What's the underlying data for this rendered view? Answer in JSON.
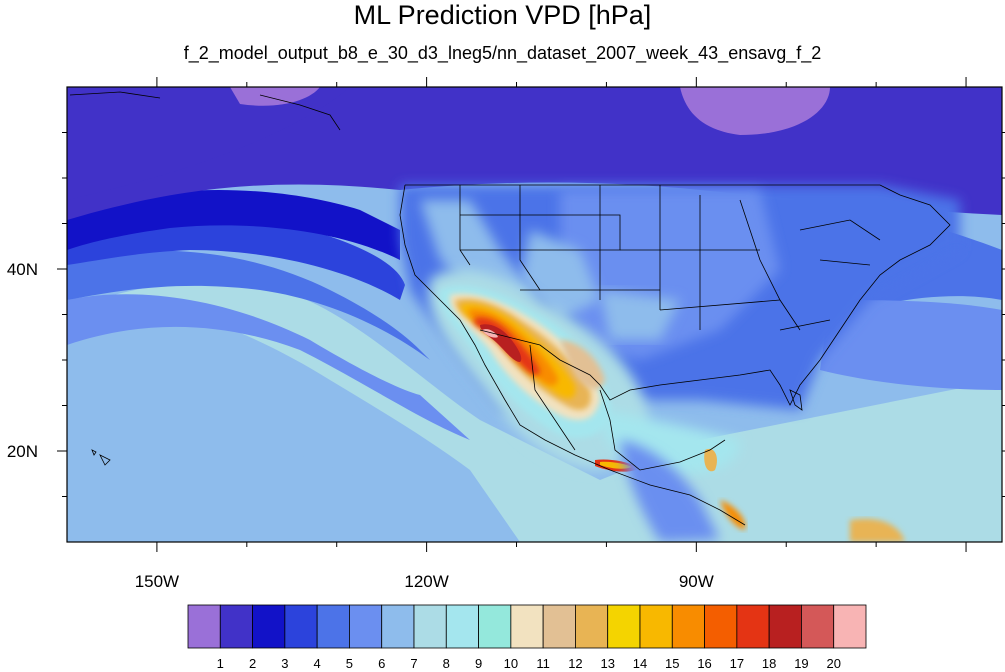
{
  "title": "ML Prediction VPD [hPa]",
  "subtitle": "f_2_model_output_b8_e_30_d3_lneg5/nn_dataset_2007_week_43_ensavg_f_2",
  "axes": {
    "lon_labels": [
      {
        "lon": -150,
        "text": "150W"
      },
      {
        "lon": -120,
        "text": "120W"
      },
      {
        "lon": -90,
        "text": "90W"
      }
    ],
    "lat_labels": [
      {
        "lat": 40,
        "text": "40N"
      },
      {
        "lat": 20,
        "text": "20N"
      }
    ],
    "lon_range": [
      -160,
      -56
    ],
    "lat_range": [
      10,
      60
    ]
  },
  "colorbar": {
    "levels": [
      "1",
      "2",
      "3",
      "4",
      "5",
      "6",
      "7",
      "8",
      "9",
      "10",
      "11",
      "12",
      "13",
      "14",
      "15",
      "16",
      "17",
      "18",
      "19",
      "20"
    ],
    "colors": [
      "#9a70d8",
      "#4132c8",
      "#1212c8",
      "#2c43dc",
      "#4c73e8",
      "#6b8ff0",
      "#8ebcec",
      "#acdce6",
      "#a4e6ee",
      "#94e8dc",
      "#f2e2c0",
      "#e2c094",
      "#e8b454",
      "#f4d400",
      "#f8b800",
      "#f88c00",
      "#f45e00",
      "#e43414",
      "#b82020",
      "#d45858",
      "#f8b4b4"
    ]
  }
}
